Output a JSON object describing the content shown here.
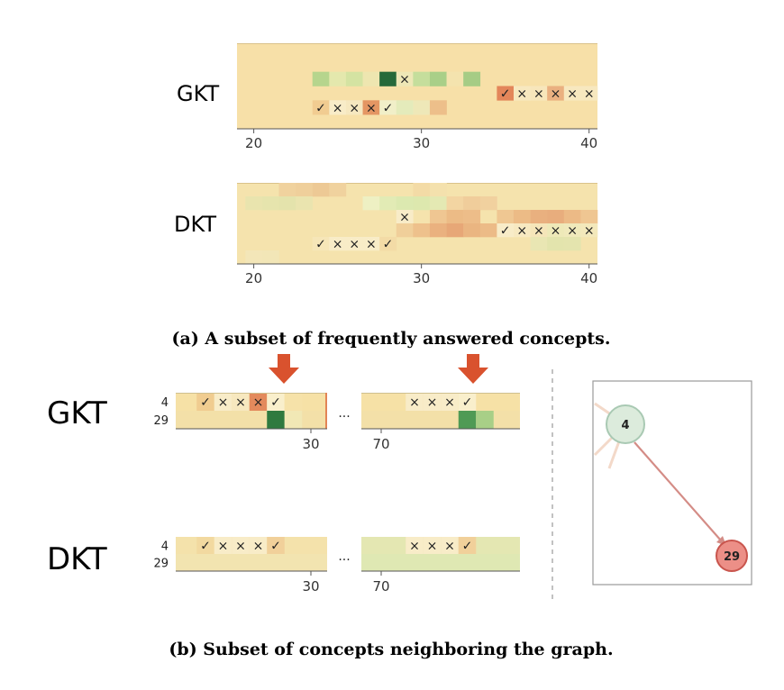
{
  "chart_data": [
    {
      "type": "heatmap",
      "model": "GKT",
      "xticks": [
        20,
        30,
        40
      ],
      "xlim": [
        19,
        40.5
      ],
      "rows": 6,
      "base_color": "#f7e0a8",
      "cells": [
        {
          "row": 2,
          "x": 24,
          "c": "#b6d58d"
        },
        {
          "row": 2,
          "x": 25,
          "c": "#e4e8ad"
        },
        {
          "row": 2,
          "x": 26,
          "c": "#d4e3a2"
        },
        {
          "row": 2,
          "x": 27,
          "c": "#eee6b0"
        },
        {
          "row": 2,
          "x": 28,
          "c": "#26693a"
        },
        {
          "row": 2,
          "x": 29,
          "c": "#eee7b6"
        },
        {
          "row": 2,
          "x": 30,
          "c": "#c5de9c"
        },
        {
          "row": 2,
          "x": 31,
          "c": "#a9cf88"
        },
        {
          "row": 2,
          "x": 32,
          "c": "#f4e3ae"
        },
        {
          "row": 2,
          "x": 33,
          "c": "#a6cc85"
        },
        {
          "row": 3,
          "x": 35,
          "c": "#e3865a"
        },
        {
          "row": 3,
          "x": 36,
          "c": "#f7e8bf"
        },
        {
          "row": 3,
          "x": 37,
          "c": "#f7e6bb"
        },
        {
          "row": 3,
          "x": 38,
          "c": "#eab080"
        },
        {
          "row": 3,
          "x": 39,
          "c": "#f7e8bf"
        },
        {
          "row": 3,
          "x": 40,
          "c": "#f7e8bf"
        },
        {
          "row": 4,
          "x": 24,
          "c": "#f1cc91"
        },
        {
          "row": 4,
          "x": 25,
          "c": "#f8ecc8"
        },
        {
          "row": 4,
          "x": 26,
          "c": "#f6e8c0"
        },
        {
          "row": 4,
          "x": 27,
          "c": "#e49663"
        },
        {
          "row": 4,
          "x": 28,
          "c": "#f1efc8"
        },
        {
          "row": 4,
          "x": 29,
          "c": "#e4ebbb"
        },
        {
          "row": 4,
          "x": 30,
          "c": "#eee8b8"
        },
        {
          "row": 4,
          "x": 31,
          "c": "#edbf8a"
        }
      ],
      "marks": [
        {
          "row": 2,
          "x": 29,
          "m": "×"
        },
        {
          "row": 3,
          "x": 35,
          "m": "✓"
        },
        {
          "row": 3,
          "x": 36,
          "m": "×"
        },
        {
          "row": 3,
          "x": 37,
          "m": "×"
        },
        {
          "row": 3,
          "x": 38,
          "m": "×"
        },
        {
          "row": 3,
          "x": 39,
          "m": "×"
        },
        {
          "row": 3,
          "x": 40,
          "m": "×"
        },
        {
          "row": 4,
          "x": 24,
          "m": "✓"
        },
        {
          "row": 4,
          "x": 25,
          "m": "×"
        },
        {
          "row": 4,
          "x": 26,
          "m": "×"
        },
        {
          "row": 4,
          "x": 27,
          "m": "×"
        },
        {
          "row": 4,
          "x": 28,
          "m": "✓"
        }
      ]
    },
    {
      "type": "heatmap",
      "model": "DKT",
      "xticks": [
        20,
        30,
        40
      ],
      "xlim": [
        19,
        40.5
      ],
      "rows": 6,
      "base_color": "#f5e3ad",
      "cells": [
        {
          "row": 0,
          "x": 22,
          "c": "#f0d29e"
        },
        {
          "row": 0,
          "x": 23,
          "c": "#efcf9b"
        },
        {
          "row": 0,
          "x": 24,
          "c": "#edc995"
        },
        {
          "row": 0,
          "x": 25,
          "c": "#f0d29e"
        },
        {
          "row": 0,
          "x": 30,
          "c": "#f3dba6"
        },
        {
          "row": 0,
          "x": 31,
          "c": "#f4e1ad"
        },
        {
          "row": 1,
          "x": 20,
          "c": "#e9e4ae"
        },
        {
          "row": 1,
          "x": 21,
          "c": "#e6e4ad"
        },
        {
          "row": 1,
          "x": 22,
          "c": "#e4e3ac"
        },
        {
          "row": 1,
          "x": 23,
          "c": "#eae4af"
        },
        {
          "row": 1,
          "x": 27,
          "c": "#eef0c3"
        },
        {
          "row": 1,
          "x": 28,
          "c": "#e2ebb5"
        },
        {
          "row": 1,
          "x": 29,
          "c": "#dce9b0"
        },
        {
          "row": 1,
          "x": 30,
          "c": "#dde8ae"
        },
        {
          "row": 1,
          "x": 31,
          "c": "#e4e9b3"
        },
        {
          "row": 1,
          "x": 32,
          "c": "#f3d5a2"
        },
        {
          "row": 1,
          "x": 33,
          "c": "#f0cd9b"
        },
        {
          "row": 1,
          "x": 34,
          "c": "#f1d19f"
        },
        {
          "row": 2,
          "x": 29,
          "c": "#f8ecc8"
        },
        {
          "row": 2,
          "x": 31,
          "c": "#efc692"
        },
        {
          "row": 2,
          "x": 32,
          "c": "#ecbb86"
        },
        {
          "row": 2,
          "x": 33,
          "c": "#edbd89"
        },
        {
          "row": 2,
          "x": 35,
          "c": "#efc792"
        },
        {
          "row": 2,
          "x": 36,
          "c": "#ecbb86"
        },
        {
          "row": 2,
          "x": 37,
          "c": "#e9b07f"
        },
        {
          "row": 2,
          "x": 38,
          "c": "#e8ad7d"
        },
        {
          "row": 2,
          "x": 39,
          "c": "#ecba86"
        },
        {
          "row": 2,
          "x": 40,
          "c": "#efc692"
        },
        {
          "row": 3,
          "x": 29,
          "c": "#f0cf9a"
        },
        {
          "row": 3,
          "x": 30,
          "c": "#eec18c"
        },
        {
          "row": 3,
          "x": 31,
          "c": "#eab17f"
        },
        {
          "row": 3,
          "x": 32,
          "c": "#e7a777"
        },
        {
          "row": 3,
          "x": 33,
          "c": "#eab581"
        },
        {
          "row": 3,
          "x": 34,
          "c": "#ecbb87"
        },
        {
          "row": 3,
          "x": 35,
          "c": "#f8ecc8"
        },
        {
          "row": 3,
          "x": 36,
          "c": "#f7e9c1"
        },
        {
          "row": 3,
          "x": 37,
          "c": "#f5e5b9"
        },
        {
          "row": 3,
          "x": 38,
          "c": "#eee9b8"
        },
        {
          "row": 3,
          "x": 39,
          "c": "#f0e9bb"
        },
        {
          "row": 3,
          "x": 40,
          "c": "#f3e8bb"
        },
        {
          "row": 4,
          "x": 24,
          "c": "#f6e6b8"
        },
        {
          "row": 4,
          "x": 25,
          "c": "#f8ecc7"
        },
        {
          "row": 4,
          "x": 26,
          "c": "#f8ecc7"
        },
        {
          "row": 4,
          "x": 27,
          "c": "#f8ecc7"
        },
        {
          "row": 4,
          "x": 28,
          "c": "#f3dba6"
        },
        {
          "row": 4,
          "x": 37,
          "c": "#e9e6b3"
        },
        {
          "row": 4,
          "x": 38,
          "c": "#e3e4ad"
        },
        {
          "row": 4,
          "x": 39,
          "c": "#e4e4ae"
        },
        {
          "row": 5,
          "x": 20,
          "c": "#f3e6b8"
        },
        {
          "row": 5,
          "x": 21,
          "c": "#f2e6b7"
        }
      ],
      "marks": [
        {
          "row": 2,
          "x": 29,
          "m": "×"
        },
        {
          "row": 3,
          "x": 35,
          "m": "✓"
        },
        {
          "row": 3,
          "x": 36,
          "m": "×"
        },
        {
          "row": 3,
          "x": 37,
          "m": "×"
        },
        {
          "row": 3,
          "x": 38,
          "m": "×"
        },
        {
          "row": 3,
          "x": 39,
          "m": "×"
        },
        {
          "row": 3,
          "x": 40,
          "m": "×"
        },
        {
          "row": 4,
          "x": 24,
          "m": "✓"
        },
        {
          "row": 4,
          "x": 25,
          "m": "×"
        },
        {
          "row": 4,
          "x": 26,
          "m": "×"
        },
        {
          "row": 4,
          "x": 27,
          "m": "×"
        },
        {
          "row": 4,
          "x": 28,
          "m": "✓"
        }
      ]
    }
  ],
  "panel_a_caption": "(a) A subset of frequently answered concepts.",
  "panel_b": {
    "caption": "(b) Subset of concepts neighboring the graph.",
    "row_labels": [
      "4",
      "29"
    ],
    "ellipsis": "...",
    "arrow_color": "#d9522e",
    "strips": [
      {
        "model": "GKT",
        "left": {
          "tick": 30,
          "marks": [
            "✓",
            "×",
            "×",
            "×",
            "✓"
          ],
          "mark_cells": [
            "#f0cc90",
            "#f8ecc8",
            "#f7e8bf",
            "#e38a5c",
            "#f9efcc"
          ],
          "row1_highlight": "#2f7a3f",
          "extra": [
            {
              "row": 0,
              "c": "#f6e2a9"
            },
            {
              "row": 1,
              "c": "#f1e8b5"
            }
          ]
        },
        "right": {
          "tick": 70,
          "marks": [
            "×",
            "×",
            "×",
            "✓"
          ],
          "mark_cells": [
            "#f8ecc8",
            "#f8ecc8",
            "#f8ecc8",
            "#f9efcc"
          ],
          "row1_highlight": "#4f9a55",
          "extra": [
            {
              "row": 1,
              "c": "#a8cf87"
            }
          ]
        }
      },
      {
        "model": "DKT",
        "left": {
          "tick": 30,
          "marks": [
            "✓",
            "×",
            "×",
            "×",
            "✓"
          ],
          "mark_cells": [
            "#f2d9a0",
            "#f8ecc8",
            "#f8ecc8",
            "#f8ecc8",
            "#f1d09a"
          ],
          "row1_highlight": "",
          "extra": []
        },
        "right": {
          "tick": 70,
          "marks": [
            "×",
            "×",
            "×",
            "✓"
          ],
          "mark_cells": [
            "#f8ecc8",
            "#f8ecc8",
            "#f8ecc8",
            "#f1d09a"
          ],
          "row1_highlight": "",
          "extra": []
        }
      }
    ],
    "graph": {
      "nodes": [
        {
          "label": "4",
          "fill": "#dcebdc",
          "stroke": "#a9c9b3"
        },
        {
          "label": "29",
          "fill": "#ec8f87",
          "stroke": "#c9554d"
        }
      ],
      "edge_color": "#d48c86"
    }
  }
}
